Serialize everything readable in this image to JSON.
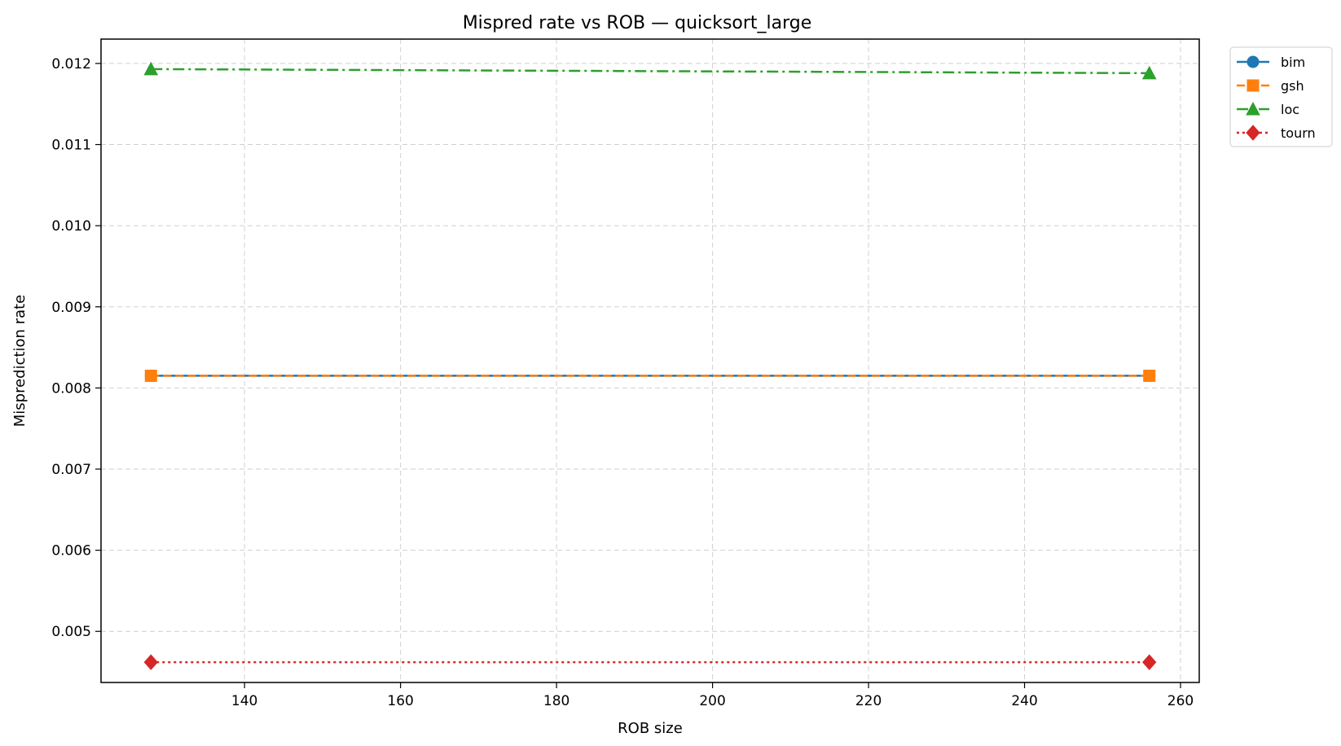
{
  "chart_data": {
    "type": "line",
    "title": "Mispred rate vs ROB — quicksort_large",
    "xlabel": "ROB size",
    "ylabel": "Misprediction rate",
    "xlim": [
      121.6,
      262.4
    ],
    "ylim": [
      0.00437,
      0.0123
    ],
    "xticks": [
      140,
      160,
      180,
      200,
      220,
      240,
      260
    ],
    "yticks": [
      0.005,
      0.006,
      0.007,
      0.008,
      0.009,
      0.01,
      0.011,
      0.012
    ],
    "ytick_labels": [
      "0.005",
      "0.006",
      "0.007",
      "0.008",
      "0.009",
      "0.010",
      "0.011",
      "0.012"
    ],
    "grid": true,
    "legend_position": "outside-top-right",
    "x": [
      128,
      256
    ],
    "series": [
      {
        "name": "bim",
        "values": [
          0.00815,
          0.00815
        ],
        "color": "#1f77b4",
        "marker": "circle",
        "linestyle": "solid"
      },
      {
        "name": "gsh",
        "values": [
          0.00815,
          0.00815
        ],
        "color": "#ff7f0e",
        "marker": "square",
        "linestyle": "dashed"
      },
      {
        "name": "loc",
        "values": [
          0.01193,
          0.01188
        ],
        "color": "#2ca02c",
        "marker": "triangle",
        "linestyle": "dashdot"
      },
      {
        "name": "tourn",
        "values": [
          0.00462,
          0.00462
        ],
        "color": "#d62728",
        "marker": "diamond",
        "linestyle": "dotted"
      }
    ]
  }
}
